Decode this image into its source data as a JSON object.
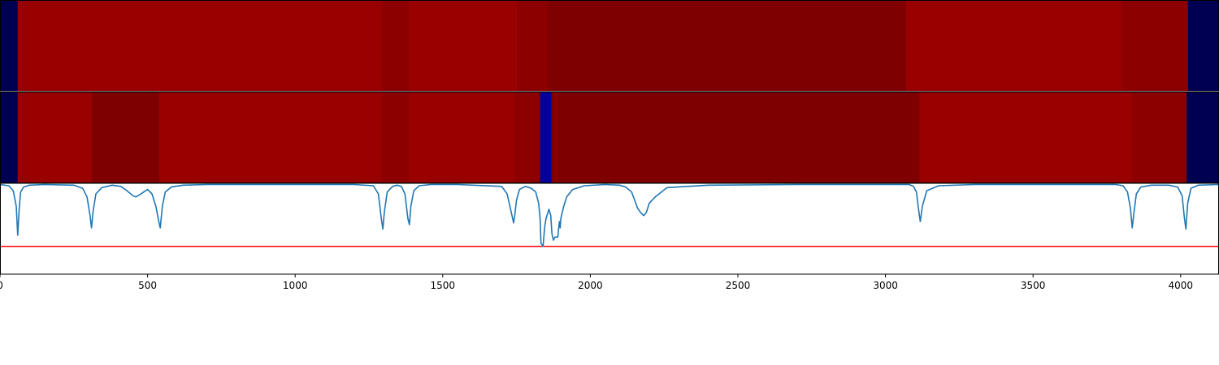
{
  "chart_data": [
    {
      "type": "heatmap",
      "title": "",
      "xlim": [
        0,
        4130
      ],
      "colors": {
        "navy": "#000050",
        "blue": "#0000a0",
        "red": "#990000",
        "mid_red": "#8c0000",
        "dark_red": "#7f0000"
      },
      "segments": [
        {
          "x0": 0,
          "x1": 60,
          "color": "navy"
        },
        {
          "x0": 60,
          "x1": 1295,
          "color": "red"
        },
        {
          "x0": 1295,
          "x1": 1385,
          "color": "mid_red"
        },
        {
          "x0": 1385,
          "x1": 1750,
          "color": "red"
        },
        {
          "x0": 1750,
          "x1": 1855,
          "color": "mid_red"
        },
        {
          "x0": 1855,
          "x1": 3070,
          "color": "dark_red"
        },
        {
          "x0": 3070,
          "x1": 3800,
          "color": "red"
        },
        {
          "x0": 3800,
          "x1": 4025,
          "color": "mid_red"
        },
        {
          "x0": 4025,
          "x1": 4130,
          "color": "navy"
        }
      ]
    },
    {
      "type": "heatmap",
      "title": "",
      "xlim": [
        0,
        4130
      ],
      "colors": {
        "navy": "#000050",
        "blue": "#0000a0",
        "red": "#990000",
        "mid_red": "#8c0000",
        "dark_red": "#7f0000"
      },
      "segments": [
        {
          "x0": 0,
          "x1": 60,
          "color": "navy"
        },
        {
          "x0": 60,
          "x1": 310,
          "color": "red"
        },
        {
          "x0": 310,
          "x1": 540,
          "color": "dark_red"
        },
        {
          "x0": 540,
          "x1": 1295,
          "color": "red"
        },
        {
          "x0": 1295,
          "x1": 1385,
          "color": "mid_red"
        },
        {
          "x0": 1385,
          "x1": 1745,
          "color": "red"
        },
        {
          "x0": 1745,
          "x1": 1830,
          "color": "mid_red"
        },
        {
          "x0": 1830,
          "x1": 1868,
          "color": "blue"
        },
        {
          "x0": 1868,
          "x1": 1880,
          "color": "dark_red"
        },
        {
          "x0": 1880,
          "x1": 1890,
          "color": "mid_red"
        },
        {
          "x0": 1890,
          "x1": 1910,
          "color": "dark_red"
        },
        {
          "x0": 1910,
          "x1": 3115,
          "color": "dark_red"
        },
        {
          "x0": 3115,
          "x1": 3835,
          "color": "red"
        },
        {
          "x0": 3835,
          "x1": 4020,
          "color": "mid_red"
        },
        {
          "x0": 4020,
          "x1": 4130,
          "color": "navy"
        }
      ]
    },
    {
      "type": "line",
      "title": "",
      "xlabel": "",
      "ylabel": "",
      "xlim": [
        0,
        4130
      ],
      "ylim": [
        -1.45,
        0.02
      ],
      "xticks": [
        0,
        500,
        1000,
        1500,
        2000,
        2500,
        3000,
        3500,
        4000
      ],
      "xtick_labels": [
        "0",
        "500",
        "1000",
        "1500",
        "2000",
        "2500",
        "3000",
        "3500",
        "4000"
      ],
      "threshold": {
        "y": -1.0,
        "color": "#ff0000"
      },
      "series": [
        {
          "color": "#1f77b4",
          "x": [
            0,
            30,
            45,
            55,
            60,
            65,
            70,
            80,
            100,
            150,
            250,
            280,
            295,
            305,
            310,
            315,
            325,
            345,
            380,
            410,
            430,
            450,
            460,
            475,
            500,
            515,
            528,
            538,
            543,
            550,
            560,
            580,
            620,
            700,
            900,
            1200,
            1265,
            1282,
            1292,
            1297,
            1302,
            1312,
            1330,
            1345,
            1360,
            1372,
            1382,
            1387,
            1392,
            1402,
            1420,
            1460,
            1550,
            1700,
            1718,
            1730,
            1740,
            1744,
            1750,
            1760,
            1780,
            1800,
            1815,
            1825,
            1830,
            1833,
            1840,
            1845,
            1850,
            1860,
            1866,
            1870,
            1875,
            1880,
            1890,
            1895,
            1898,
            1900,
            1905,
            1910,
            1920,
            1940,
            1980,
            2050,
            2100,
            2120,
            2140,
            2150,
            2160,
            2170,
            2180,
            2182,
            2190,
            2200,
            2220,
            2260,
            2400,
            2700,
            3000,
            3080,
            3095,
            3105,
            3112,
            3118,
            3125,
            3140,
            3180,
            3300,
            3600,
            3780,
            3805,
            3820,
            3830,
            3836,
            3842,
            3850,
            3865,
            3900,
            3960,
            3990,
            4005,
            4013,
            4018,
            4024,
            4035,
            4060,
            4130
          ],
          "y": [
            0,
            -0.02,
            -0.1,
            -0.35,
            -0.82,
            -0.4,
            -0.12,
            -0.04,
            -0.01,
            0,
            -0.01,
            -0.06,
            -0.2,
            -0.5,
            -0.7,
            -0.45,
            -0.15,
            -0.05,
            -0.01,
            -0.03,
            -0.1,
            -0.18,
            -0.2,
            -0.16,
            -0.08,
            -0.15,
            -0.35,
            -0.6,
            -0.7,
            -0.35,
            -0.12,
            -0.04,
            -0.01,
            0,
            0,
            0,
            -0.02,
            -0.15,
            -0.55,
            -0.72,
            -0.45,
            -0.12,
            -0.03,
            -0.01,
            -0.03,
            -0.15,
            -0.55,
            -0.65,
            -0.35,
            -0.1,
            -0.02,
            0,
            0,
            -0.03,
            -0.15,
            -0.4,
            -0.62,
            -0.5,
            -0.25,
            -0.08,
            -0.03,
            -0.06,
            -0.12,
            -0.3,
            -0.55,
            -0.95,
            -1.0,
            -0.7,
            -0.55,
            -0.4,
            -0.5,
            -0.8,
            -0.9,
            -0.85,
            -0.85,
            -0.6,
            -0.7,
            -0.55,
            -0.45,
            -0.35,
            -0.2,
            -0.08,
            -0.02,
            0,
            -0.01,
            -0.04,
            -0.12,
            -0.25,
            -0.38,
            -0.45,
            -0.5,
            -0.5,
            -0.45,
            -0.3,
            -0.2,
            -0.05,
            -0.01,
            0,
            0,
            0,
            -0.03,
            -0.12,
            -0.4,
            -0.6,
            -0.35,
            -0.1,
            -0.02,
            0,
            0,
            0,
            -0.02,
            -0.12,
            -0.38,
            -0.7,
            -0.45,
            -0.15,
            -0.04,
            -0.01,
            -0.01,
            -0.04,
            -0.18,
            -0.55,
            -0.72,
            -0.3,
            -0.06,
            -0.01,
            0
          ]
        }
      ]
    }
  ]
}
